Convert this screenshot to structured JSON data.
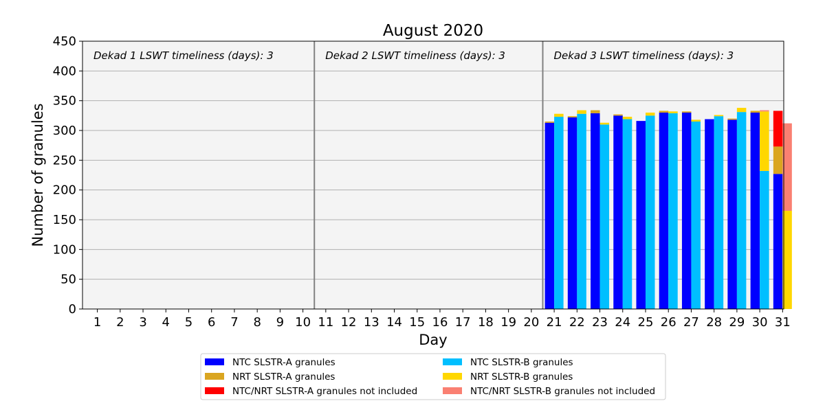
{
  "chart_data": {
    "type": "bar",
    "stacked": true,
    "grouped": true,
    "title": "August 2020",
    "xlabel": "Day",
    "ylabel": "Number of granules",
    "ylim": [
      0,
      450
    ],
    "yticks": [
      0,
      50,
      100,
      150,
      200,
      250,
      300,
      350,
      400,
      450
    ],
    "grid": "horizontal",
    "background": "#f4f4f4",
    "categories": [
      "1",
      "2",
      "3",
      "4",
      "5",
      "6",
      "7",
      "8",
      "9",
      "10",
      "11",
      "12",
      "13",
      "14",
      "15",
      "16",
      "17",
      "18",
      "19",
      "20",
      "21",
      "22",
      "23",
      "24",
      "25",
      "26",
      "27",
      "28",
      "29",
      "30",
      "31"
    ],
    "dekad_separators_after_day": [
      10,
      20
    ],
    "annotations": [
      {
        "text": "Dekad 1 LSWT timeliness (days): 3",
        "dekad": 1
      },
      {
        "text": "Dekad 2 LSWT timeliness (days): 3",
        "dekad": 2
      },
      {
        "text": "Dekad 3 LSWT timeliness (days): 3",
        "dekad": 3
      }
    ],
    "groups": [
      {
        "sensor": "SLSTR-A",
        "series": [
          {
            "name": "NTC SLSTR-A granules",
            "color": "#0000ff",
            "values": [
              0,
              0,
              0,
              0,
              0,
              0,
              0,
              0,
              0,
              0,
              0,
              0,
              0,
              0,
              0,
              0,
              0,
              0,
              0,
              0,
              313,
              322,
              329,
              325,
              316,
              330,
              330,
              319,
              318,
              330,
              227
            ]
          },
          {
            "name": "NRT SLSTR-A granules",
            "color": "#daa520",
            "values": [
              0,
              0,
              0,
              0,
              0,
              0,
              0,
              0,
              0,
              0,
              0,
              0,
              0,
              0,
              0,
              0,
              0,
              0,
              0,
              0,
              2,
              2,
              5,
              2,
              0,
              3,
              2,
              0,
              2,
              3,
              46
            ]
          },
          {
            "name": "NTC/NRT SLSTR-A granules not included",
            "color": "#ff0000",
            "values": [
              0,
              0,
              0,
              0,
              0,
              0,
              0,
              0,
              0,
              0,
              0,
              0,
              0,
              0,
              0,
              0,
              0,
              0,
              0,
              0,
              0,
              0,
              0,
              0,
              0,
              0,
              0,
              0,
              0,
              0,
              60
            ]
          }
        ]
      },
      {
        "sensor": "SLSTR-B",
        "series": [
          {
            "name": "NTC SLSTR-B granules",
            "color": "#00bfff",
            "values": [
              0,
              0,
              0,
              0,
              0,
              0,
              0,
              0,
              0,
              0,
              0,
              0,
              0,
              0,
              0,
              0,
              0,
              0,
              0,
              0,
              323,
              328,
              310,
              319,
              325,
              329,
              315,
              324,
              331,
              232,
              0
            ]
          },
          {
            "name": "NRT SLSTR-B granules",
            "color": "#ffd700",
            "values": [
              0,
              0,
              0,
              0,
              0,
              0,
              0,
              0,
              0,
              0,
              0,
              0,
              0,
              0,
              0,
              0,
              0,
              0,
              0,
              0,
              5,
              6,
              3,
              4,
              5,
              3,
              3,
              2,
              7,
              100,
              165
            ]
          },
          {
            "name": "NTC/NRT SLSTR-B granules not included",
            "color": "#fa8072",
            "values": [
              0,
              0,
              0,
              0,
              0,
              0,
              0,
              0,
              0,
              0,
              0,
              0,
              0,
              0,
              0,
              0,
              0,
              0,
              0,
              0,
              0,
              0,
              0,
              0,
              0,
              0,
              0,
              0,
              0,
              2,
              147
            ]
          }
        ]
      }
    ],
    "legend": {
      "placement": "bottom-center",
      "columns": 2,
      "entries": [
        {
          "label": "NTC SLSTR-A granules",
          "color": "#0000ff"
        },
        {
          "label": "NTC SLSTR-B granules",
          "color": "#00bfff"
        },
        {
          "label": "NRT SLSTR-A granules",
          "color": "#daa520"
        },
        {
          "label": "NRT SLSTR-B granules",
          "color": "#ffd700"
        },
        {
          "label": "NTC/NRT SLSTR-A granules not included",
          "color": "#ff0000"
        },
        {
          "label": "NTC/NRT SLSTR-B granules not included",
          "color": "#fa8072"
        }
      ]
    }
  }
}
